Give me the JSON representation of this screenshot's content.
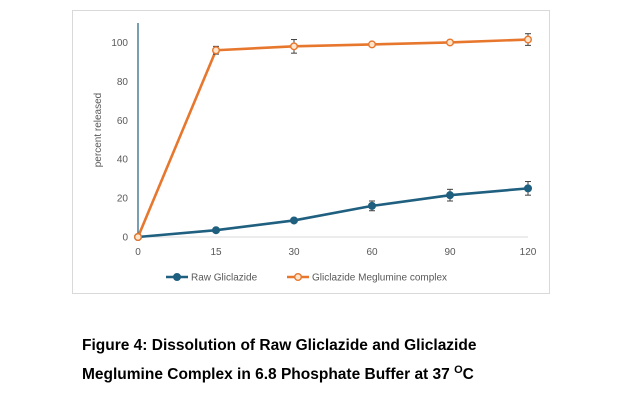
{
  "chart_data": {
    "type": "line",
    "categories": [
      "0",
      "15",
      "30",
      "60",
      "90",
      "120"
    ],
    "ylabel": "percent released",
    "xlabel": "",
    "ylim": [
      0,
      110
    ],
    "yticks": [
      "0",
      "20",
      "40",
      "60",
      "80",
      "100"
    ],
    "grid": false,
    "legend_position": "bottom",
    "series": [
      {
        "name": "Raw Gliclazide",
        "color": "#1f5f7f",
        "marker_fill": "#1f5f7f",
        "values": [
          0,
          3.5,
          8.5,
          16,
          21.5,
          25
        ],
        "errors": [
          0,
          0,
          0,
          2.5,
          3,
          3.5
        ]
      },
      {
        "name": "Gliclazide Meglumine complex",
        "color": "#e8772e",
        "marker_fill": "#ffe6cc",
        "values": [
          0,
          96,
          98,
          99,
          100,
          101.5
        ],
        "errors": [
          0,
          2,
          3.5,
          0,
          0,
          3
        ]
      }
    ]
  },
  "caption": {
    "line1": "Figure 4: Dissolution of Raw Gliclazide and Gliclazide",
    "line2": "Meglumine Complex in 6.8 Phosphate Buffer at 37 ",
    "degree": "O",
    "unit": "C"
  }
}
